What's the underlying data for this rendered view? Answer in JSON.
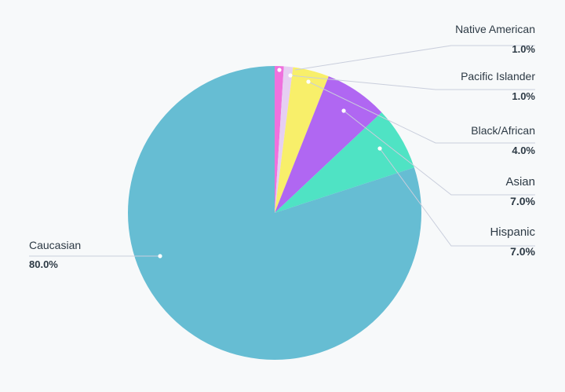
{
  "chart_data": {
    "type": "pie",
    "slices": [
      {
        "label": "Native American",
        "value": 1.0,
        "value_label": "1.0%",
        "color": "#ef71dd"
      },
      {
        "label": "Pacific Islander",
        "value": 1.0,
        "value_label": "1.0%",
        "color": "#e6cff2"
      },
      {
        "label": "Black/African",
        "value": 4.0,
        "value_label": "4.0%",
        "color": "#f8ef6a"
      },
      {
        "label": "Asian",
        "value": 7.0,
        "value_label": "7.0%",
        "color": "#b067f2"
      },
      {
        "label": "Hispanic",
        "value": 7.0,
        "value_label": "7.0%",
        "color": "#4fe3c4"
      },
      {
        "label": "Caucasian",
        "value": 80.0,
        "value_label": "80.0%",
        "color": "#66bdd3"
      }
    ],
    "start": "12 o'clock",
    "direction": "clockwise",
    "legend": "none (callout labels)"
  }
}
